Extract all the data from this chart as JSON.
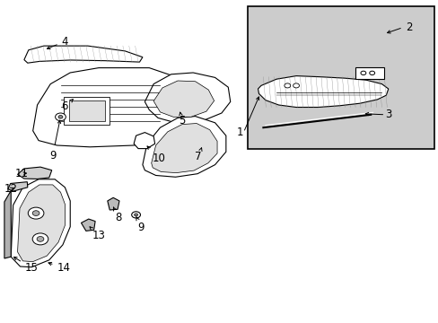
{
  "bg_color": "#ffffff",
  "line_color": "#000000",
  "font_size": 8.5,
  "inset_bg": "#cccccc"
}
